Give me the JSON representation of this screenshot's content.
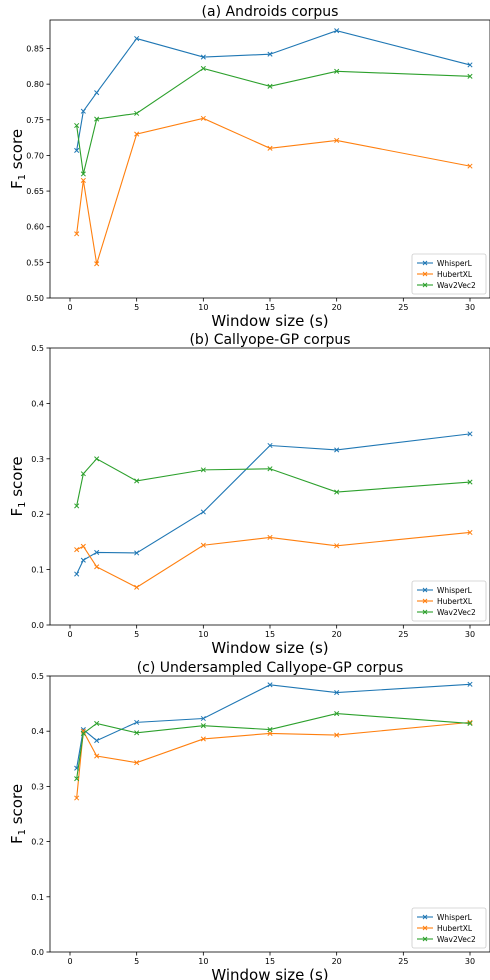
{
  "colors": {
    "WhisperL": "#1f77b4",
    "HubertXL": "#ff7f0e",
    "Wav2Vec2": "#2ca02c"
  },
  "chart_data": [
    {
      "type": "line",
      "title": "(a) Androids corpus",
      "xlabel": "Window size (s)",
      "ylabel": "F1 score",
      "xlim": [
        -1.5,
        31.5
      ],
      "ylim": [
        0.5,
        0.89
      ],
      "xticks": [
        0,
        5,
        10,
        15,
        20,
        25,
        30
      ],
      "yticks": [
        0.5,
        0.55,
        0.6,
        0.65,
        0.7,
        0.75,
        0.8,
        0.85
      ],
      "ytick_labels": [
        "0.50",
        "0.55",
        "0.60",
        "0.65",
        "0.70",
        "0.75",
        "0.80",
        "0.85"
      ],
      "legend": "bottom-right",
      "marker": "x",
      "x": [
        0.5,
        1,
        2,
        5,
        10,
        15,
        20,
        30
      ],
      "series": [
        {
          "name": "WhisperL",
          "values": [
            0.707,
            0.762,
            0.788,
            0.864,
            0.838,
            0.842,
            0.875,
            0.827
          ]
        },
        {
          "name": "HubertXL",
          "values": [
            0.59,
            0.665,
            0.548,
            0.73,
            0.752,
            0.71,
            0.721,
            0.685
          ]
        },
        {
          "name": "Wav2Vec2",
          "values": [
            0.742,
            0.674,
            0.751,
            0.759,
            0.822,
            0.797,
            0.818,
            0.811
          ]
        }
      ]
    },
    {
      "type": "line",
      "title": "(b) Callyope-GP corpus",
      "xlabel": "Window size (s)",
      "ylabel": "F1 score",
      "xlim": [
        -1.5,
        31.5
      ],
      "ylim": [
        0.0,
        0.5
      ],
      "xticks": [
        0,
        5,
        10,
        15,
        20,
        25,
        30
      ],
      "yticks": [
        0.0,
        0.1,
        0.2,
        0.3,
        0.4,
        0.5
      ],
      "ytick_labels": [
        "0.0",
        "0.1",
        "0.2",
        "0.3",
        "0.4",
        "0.5"
      ],
      "legend": "bottom-right",
      "marker": "x",
      "x": [
        0.5,
        1,
        2,
        5,
        10,
        15,
        20,
        30
      ],
      "series": [
        {
          "name": "WhisperL",
          "values": [
            0.092,
            0.117,
            0.131,
            0.13,
            0.204,
            0.324,
            0.316,
            0.345
          ]
        },
        {
          "name": "HubertXL",
          "values": [
            0.136,
            0.142,
            0.105,
            0.068,
            0.144,
            0.158,
            0.143,
            0.167
          ]
        },
        {
          "name": "Wav2Vec2",
          "values": [
            0.215,
            0.273,
            0.3,
            0.26,
            0.28,
            0.282,
            0.24,
            0.258
          ]
        }
      ]
    },
    {
      "type": "line",
      "title": "(c) Undersampled Callyope-GP corpus",
      "xlabel": "Window size (s)",
      "ylabel": "F1 score",
      "xlim": [
        -1.5,
        31.5
      ],
      "ylim": [
        0.0,
        0.5
      ],
      "xticks": [
        0,
        5,
        10,
        15,
        20,
        25,
        30
      ],
      "yticks": [
        0.0,
        0.1,
        0.2,
        0.3,
        0.4,
        0.5
      ],
      "ytick_labels": [
        "0.0",
        "0.1",
        "0.2",
        "0.3",
        "0.4",
        "0.5"
      ],
      "legend": "bottom-right",
      "marker": "x",
      "x": [
        0.5,
        1,
        2,
        5,
        10,
        15,
        20,
        30
      ],
      "series": [
        {
          "name": "WhisperL",
          "values": [
            0.333,
            0.403,
            0.383,
            0.416,
            0.423,
            0.484,
            0.47,
            0.485
          ]
        },
        {
          "name": "HubertXL",
          "values": [
            0.279,
            0.4,
            0.355,
            0.343,
            0.386,
            0.396,
            0.393,
            0.416
          ]
        },
        {
          "name": "Wav2Vec2",
          "values": [
            0.314,
            0.396,
            0.414,
            0.397,
            0.41,
            0.403,
            0.432,
            0.414
          ]
        }
      ]
    }
  ]
}
